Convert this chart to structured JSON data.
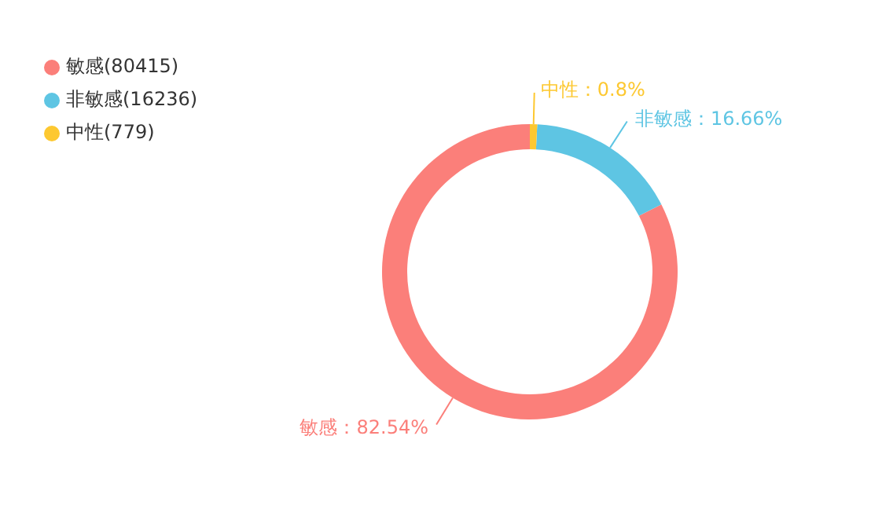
{
  "chart_data": {
    "type": "donut",
    "categories": [
      "敏感(80415)",
      "非敏感(16236)",
      "中性(779)"
    ],
    "values": [
      82.54,
      16.66,
      0.8
    ],
    "colors": [
      "#fb7f7a",
      "#5ec5e3",
      "#fdc830"
    ],
    "value_labels": [
      "敏感：82.54%",
      "非敏感：16.66%",
      "中性：0.8%"
    ],
    "legend": "top left"
  }
}
